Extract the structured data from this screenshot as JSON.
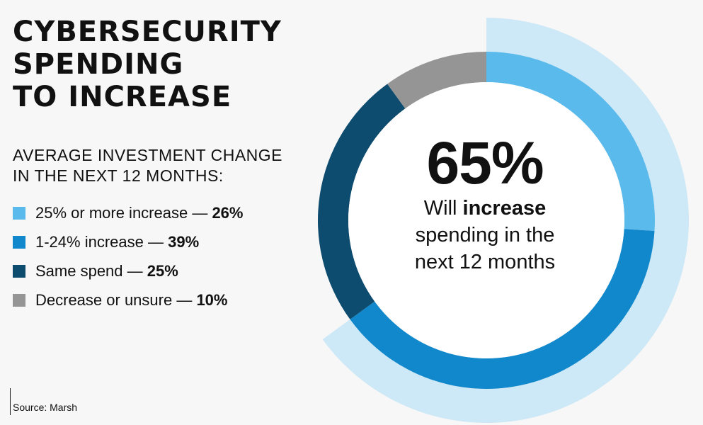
{
  "title_lines": [
    "CYBERSECURITY",
    "SPENDING",
    "TO INCREASE"
  ],
  "subtitle_lines": [
    "AVERAGE INVESTMENT CHANGE",
    "IN THE NEXT 12 MONTHS:"
  ],
  "legend": [
    {
      "label": "25% or more increase — ",
      "value": "26%",
      "color": "#5bbaec"
    },
    {
      "label": "1-24% increase — ",
      "value": "39%",
      "color": "#1188cc"
    },
    {
      "label": "Same spend — ",
      "value": "25%",
      "color": "#0d4b6f"
    },
    {
      "label": "Decrease or unsure — ",
      "value": "10%",
      "color": "#959595"
    }
  ],
  "center": {
    "big": "65%",
    "line1_pre": "Will ",
    "line1_bold": "increase",
    "line2": "spending in the",
    "line3": "next 12 months"
  },
  "source": "Source: Marsh",
  "chart_data": {
    "type": "pie",
    "style": "donut",
    "title": "CYBERSECURITY SPENDING TO INCREASE",
    "subtitle": "AVERAGE INVESTMENT CHANGE IN THE NEXT 12 MONTHS:",
    "categories": [
      "25% or more increase",
      "1-24% increase",
      "Same spend",
      "Decrease or unsure"
    ],
    "values": [
      26,
      39,
      25,
      10
    ],
    "colors": [
      "#5bbaec",
      "#1188cc",
      "#0d4b6f",
      "#959595"
    ],
    "highlight": {
      "label": "Will increase spending in the next 12 months",
      "value": 65,
      "color": "#cde8f6"
    },
    "legend_position": "left"
  }
}
